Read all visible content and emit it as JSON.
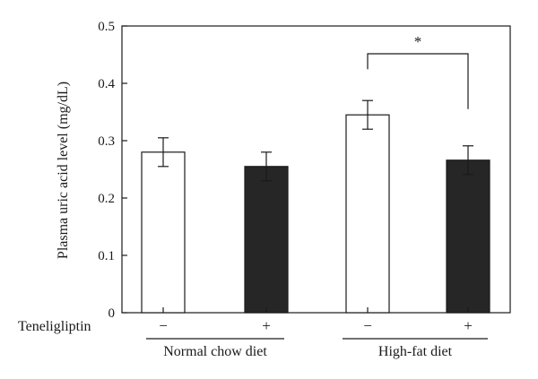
{
  "chart_data": {
    "type": "bar",
    "ylabel": "Plasma uric acid level (mg/dL)",
    "ylim": [
      0,
      0.5
    ],
    "yticks": [
      "0",
      "0.1",
      "0.2",
      "0.3",
      "0.4",
      "0.5"
    ],
    "row_label": "Teneligliptin",
    "bars": [
      {
        "group": "Normal chow diet",
        "treatment": "−",
        "value": 0.28,
        "error": 0.025,
        "fill": "#ffffff"
      },
      {
        "group": "Normal chow diet",
        "treatment": "+",
        "value": 0.255,
        "error": 0.025,
        "fill": "#262626"
      },
      {
        "group": "High-fat diet",
        "treatment": "−",
        "value": 0.345,
        "error": 0.025,
        "fill": "#ffffff"
      },
      {
        "group": "High-fat diet",
        "treatment": "+",
        "value": 0.266,
        "error": 0.025,
        "fill": "#262626"
      }
    ],
    "groups": [
      "Normal chow diet",
      "High-fat diet"
    ],
    "significance": {
      "from_bar": 2,
      "to_bar": 3,
      "label": "*"
    }
  }
}
